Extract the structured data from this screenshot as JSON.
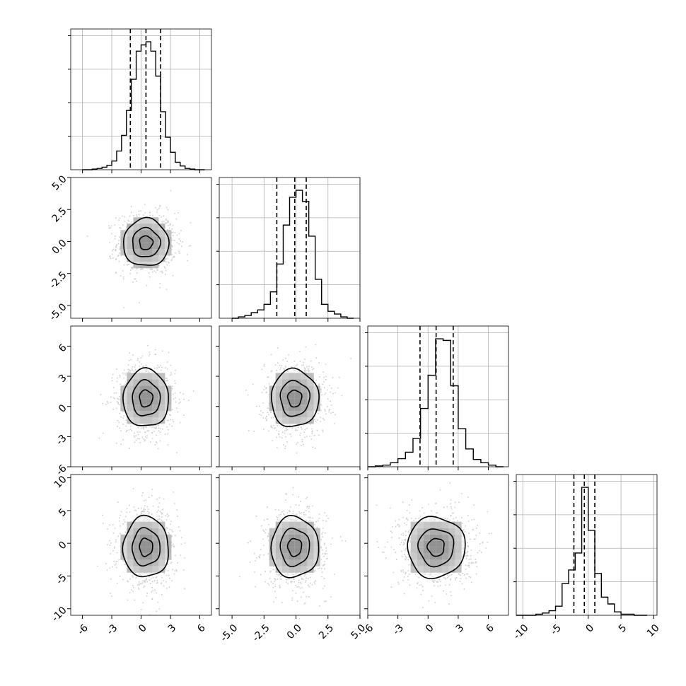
{
  "chart_data": {
    "type": "corner",
    "dims": 4,
    "ranges": [
      [
        -7.2,
        7.2
      ],
      [
        -6.0,
        5.0
      ],
      [
        -6.0,
        8.0
      ],
      [
        -11.0,
        10.5
      ]
    ],
    "ticks": [
      [
        "-6",
        "-3",
        "0",
        "3",
        "6"
      ],
      [
        "-5.0",
        "-2.5",
        "0.0",
        "2.5",
        "5.0"
      ],
      [
        "-6",
        "-3",
        "0",
        "3",
        "6"
      ],
      [
        "-10",
        "-5",
        "0",
        "5",
        "10"
      ]
    ],
    "tick_values": [
      [
        -6,
        -3,
        0,
        3,
        6
      ],
      [
        -5,
        -2.5,
        0,
        2.5,
        5
      ],
      [
        -6,
        -3,
        0,
        3,
        6
      ],
      [
        -10,
        -5,
        0,
        5,
        10
      ]
    ],
    "quantiles": [
      [
        -1.1,
        0.5,
        2.0
      ],
      [
        -1.5,
        -0.1,
        0.8
      ],
      [
        -0.8,
        0.8,
        2.5
      ],
      [
        -2.2,
        -0.6,
        1.0
      ]
    ],
    "histograms": [
      {
        "bin_edges": [
          -6.0,
          -5.5,
          -5.0,
          -4.5,
          -4.0,
          -3.5,
          -3.0,
          -2.5,
          -2.0,
          -1.5,
          -1.0,
          -0.5,
          0.0,
          0.5,
          1.0,
          1.5,
          2.0,
          2.5,
          3.0,
          3.5,
          4.0,
          4.5,
          5.0,
          5.5,
          6.0,
          6.5
        ],
        "counts": [
          0,
          0,
          1,
          2,
          4,
          7,
          14,
          30,
          55,
          95,
          145,
          190,
          200,
          205,
          190,
          150,
          93,
          52,
          28,
          12,
          6,
          2,
          1,
          0,
          0
        ]
      },
      {
        "bin_edges": [
          -5.0,
          -4.5,
          -4.0,
          -3.5,
          -3.0,
          -2.5,
          -2.0,
          -1.5,
          -1.0,
          -0.5,
          0.0,
          0.5,
          1.0,
          1.5,
          2.0,
          2.5,
          3.0,
          3.5,
          4.0,
          4.5
        ],
        "counts": [
          0,
          1,
          2,
          4,
          6,
          10,
          19,
          39,
          67,
          87,
          92,
          84,
          59,
          28,
          10,
          5,
          3,
          1,
          0
        ]
      },
      {
        "bin_edges": [
          -6.0,
          -5.25,
          -4.5,
          -3.75,
          -3.0,
          -2.25,
          -1.5,
          -0.75,
          0.0,
          0.75,
          1.5,
          2.25,
          3.0,
          3.75,
          4.5,
          5.25,
          6.0,
          6.75,
          7.5
        ],
        "counts": [
          0,
          1,
          2,
          5,
          10,
          18,
          35,
          72,
          113,
          158,
          156,
          100,
          47,
          22,
          9,
          5,
          2,
          0
        ]
      },
      {
        "bin_edges": [
          -11.0,
          -10.0,
          -9.0,
          -8.0,
          -7.0,
          -6.0,
          -5.0,
          -4.0,
          -3.0,
          -2.0,
          -1.0,
          0.0,
          1.0,
          2.0,
          3.0,
          4.0,
          5.0,
          6.0,
          7.0,
          8.0,
          9.0
        ],
        "counts": [
          0,
          0,
          0,
          1,
          2,
          4,
          8,
          28,
          40,
          55,
          113,
          75,
          37,
          16,
          10,
          3,
          1,
          1,
          0,
          0
        ]
      }
    ],
    "grid": true
  }
}
